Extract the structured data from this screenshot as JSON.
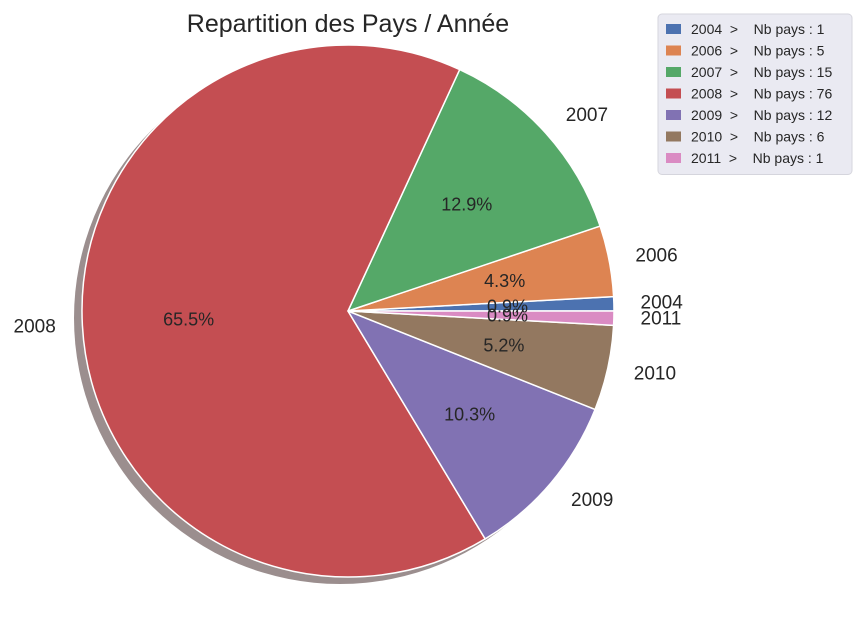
{
  "chart_data": {
    "type": "pie",
    "title": "Repartition des Pays / Année",
    "shadow": true,
    "legend_position": "top-right",
    "slices": [
      {
        "label": "2004",
        "value": 1,
        "pct_label": "0.9%",
        "legend": "2004  >    Nb pays : 1",
        "color": "#4c72b0"
      },
      {
        "label": "2006",
        "value": 5,
        "pct_label": "4.3%",
        "legend": "2006  >    Nb pays : 5",
        "color": "#dd8452"
      },
      {
        "label": "2007",
        "value": 15,
        "pct_label": "12.9%",
        "legend": "2007  >    Nb pays : 15",
        "color": "#55a868"
      },
      {
        "label": "2008",
        "value": 76,
        "pct_label": "65.5%",
        "legend": "2008  >    Nb pays : 76",
        "color": "#c44e52"
      },
      {
        "label": "2009",
        "value": 12,
        "pct_label": "10.3%",
        "legend": "2009  >    Nb pays : 12",
        "color": "#8172b3"
      },
      {
        "label": "2010",
        "value": 6,
        "pct_label": "5.2%",
        "legend": "2010  >    Nb pays : 6",
        "color": "#937860"
      },
      {
        "label": "2011",
        "value": 1,
        "pct_label": "0.9%",
        "legend": "2011  >    Nb pays : 1",
        "color": "#da8bc3"
      }
    ]
  }
}
